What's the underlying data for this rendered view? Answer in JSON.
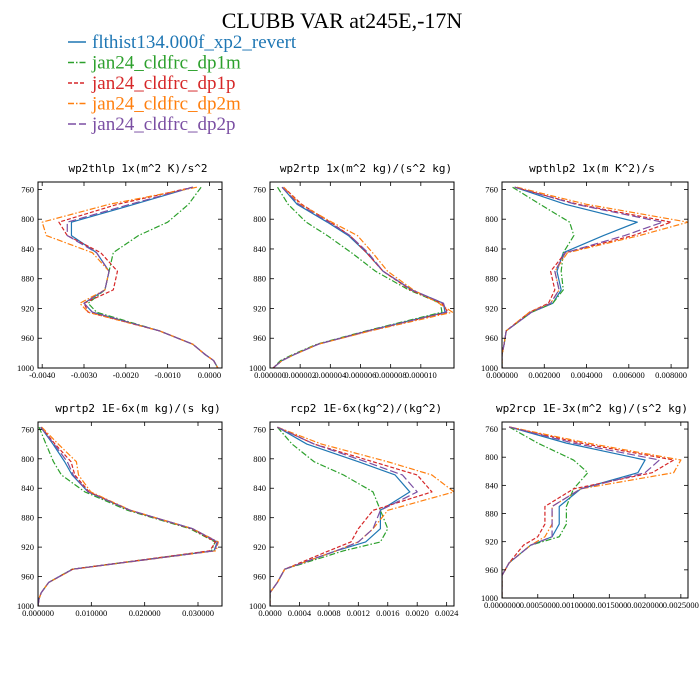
{
  "figure_title": "CLUBB VAR at245E,-17N",
  "colors": {
    "flthist134.000f_xp2_revert": "#1f77b4",
    "jan24_cldfrc_dp1m": "#2ca02c",
    "jan24_cldfrc_dp1p": "#d62728",
    "jan24_cldfrc_dp2m": "#ff7f0e",
    "jan24_cldfrc_dp2p": "#7b4fa3"
  },
  "legend": [
    {
      "label": "flthist134.000f_xp2_revert",
      "color": "#1f77b4",
      "dash": "solid"
    },
    {
      "label": "jan24_cldfrc_dp1m",
      "color": "#2ca02c",
      "dash": "dashdot"
    },
    {
      "label": "jan24_cldfrc_dp1p",
      "color": "#d62728",
      "dash": "dashed"
    },
    {
      "label": "jan24_cldfrc_dp2m",
      "color": "#ff7f0e",
      "dash": "dashdot"
    },
    {
      "label": "jan24_cldfrc_dp2p",
      "color": "#7b4fa3",
      "dash": "longdash"
    }
  ],
  "chart_data": [
    {
      "type": "line",
      "title": "wp2thlp  1x(m^2 K)/s^2",
      "xlim": [
        -0.0041,
        0.0003
      ],
      "ylim": [
        1000,
        750
      ],
      "xticks": [
        "-0.0040",
        "-0.0030",
        "-0.0020",
        "-0.0010",
        "0.0000"
      ],
      "xtick_values": [
        -0.004,
        -0.003,
        -0.002,
        -0.001,
        0.0
      ],
      "yticks": [
        760,
        800,
        840,
        880,
        920,
        960,
        1000
      ],
      "y": [
        757,
        780,
        804,
        822,
        845,
        870,
        895,
        913,
        925,
        950,
        968,
        982,
        990,
        1000
      ],
      "series": [
        {
          "name": "flthist134.000f_xp2_revert",
          "values": [
            -0.0004,
            -0.0018,
            -0.0033,
            -0.0033,
            -0.0027,
            -0.0024,
            -0.0025,
            -0.003,
            -0.0028,
            -0.0012,
            -0.0004,
            -0.0001,
            0.0001,
            0.0002
          ]
        },
        {
          "name": "jan24_cldfrc_dp1m",
          "values": [
            -0.0002,
            -0.0005,
            -0.001,
            -0.0017,
            -0.0023,
            -0.0024,
            -0.0025,
            -0.0029,
            -0.0027,
            -0.0012,
            -0.0004,
            -0.0001,
            0.0001,
            0.0002
          ]
        },
        {
          "name": "jan24_cldfrc_dp1p",
          "values": [
            -0.0004,
            -0.0022,
            -0.0036,
            -0.0034,
            -0.0026,
            -0.0022,
            -0.0023,
            -0.003,
            -0.0029,
            -0.0012,
            -0.0004,
            -0.0001,
            0.0001,
            0.0002
          ]
        },
        {
          "name": "jan24_cldfrc_dp2m",
          "values": [
            -0.0003,
            -0.0024,
            -0.004,
            -0.0039,
            -0.0028,
            -0.0024,
            -0.0025,
            -0.0031,
            -0.0029,
            -0.0012,
            -0.0004,
            -0.0001,
            0.0001,
            0.0002
          ]
        },
        {
          "name": "jan24_cldfrc_dp2p",
          "values": [
            -0.0004,
            -0.0019,
            -0.0034,
            -0.0034,
            -0.0027,
            -0.0024,
            -0.0025,
            -0.003,
            -0.0028,
            -0.0012,
            -0.0004,
            -0.0001,
            0.0001,
            0.0002
          ]
        }
      ]
    },
    {
      "type": "line",
      "title": "wp2rtp  1x(m^2 kg)/(s^2 kg)",
      "xlim": [
        0.0,
        1.22e-05
      ],
      "ylim": [
        1000,
        750
      ],
      "xticks": [
        "0.000000",
        "0.000002",
        "0.000004",
        "0.000006",
        "0.000008",
        "0.000010"
      ],
      "xtick_values": [
        0.0,
        2e-06,
        4e-06,
        6e-06,
        8e-06,
        1e-05
      ],
      "yticks": [
        760,
        800,
        840,
        880,
        920,
        960,
        1000
      ],
      "y": [
        757,
        780,
        804,
        822,
        845,
        870,
        895,
        913,
        925,
        950,
        968,
        982,
        990,
        1000
      ],
      "series": [
        {
          "name": "flthist134.000f_xp2_revert",
          "values": [
            8e-07,
            1.8e-06,
            3.8e-06,
            5.2e-06,
            6.4e-06,
            7.5e-06,
            9.4e-06,
            1.15e-05,
            1.16e-05,
            6.5e-06,
            3.2e-06,
            1.6e-06,
            8e-07,
            2e-07
          ]
        },
        {
          "name": "jan24_cldfrc_dp1m",
          "values": [
            5e-07,
            1.2e-06,
            2.4e-06,
            3.8e-06,
            5.4e-06,
            7e-06,
            9.2e-06,
            1.13e-05,
            1.14e-05,
            6.4e-06,
            3.1e-06,
            1.5e-06,
            7e-07,
            2e-07
          ]
        },
        {
          "name": "jan24_cldfrc_dp1p",
          "values": [
            9e-07,
            2.1e-06,
            4e-06,
            5.3e-06,
            6.4e-06,
            7.5e-06,
            9.3e-06,
            1.14e-05,
            1.18e-05,
            6.6e-06,
            3.2e-06,
            1.6e-06,
            8e-07,
            2e-07
          ]
        },
        {
          "name": "jan24_cldfrc_dp2m",
          "values": [
            9e-07,
            2e-06,
            4.1e-06,
            5.8e-06,
            6.8e-06,
            7.8e-06,
            9.5e-06,
            1.12e-05,
            1.21e-05,
            6.7e-06,
            3.2e-06,
            1.6e-06,
            8e-07,
            2e-07
          ]
        },
        {
          "name": "jan24_cldfrc_dp2p",
          "values": [
            8e-07,
            1.9e-06,
            3.9e-06,
            5.3e-06,
            6.5e-06,
            7.5e-06,
            9.4e-06,
            1.15e-05,
            1.17e-05,
            6.5e-06,
            3.2e-06,
            1.6e-06,
            8e-07,
            2e-07
          ]
        }
      ]
    },
    {
      "type": "line",
      "title": "wpthlp2  1x(m K^2)/s",
      "xlim": [
        0.0,
        0.0088
      ],
      "ylim": [
        1000,
        750
      ],
      "xticks": [
        "0.000000",
        "0.002000",
        "0.004000",
        "0.006000",
        "0.008000"
      ],
      "xtick_values": [
        0.0,
        0.002,
        0.004,
        0.006,
        0.008
      ],
      "yticks": [
        760,
        800,
        840,
        880,
        920,
        960,
        1000
      ],
      "y": [
        757,
        780,
        804,
        822,
        845,
        870,
        895,
        913,
        925,
        950,
        968,
        982,
        990,
        1000
      ],
      "series": [
        {
          "name": "flthist134.000f_xp2_revert",
          "values": [
            0.0006,
            0.003,
            0.0064,
            0.0048,
            0.0029,
            0.0026,
            0.0028,
            0.0024,
            0.0014,
            0.0002,
            0.0001,
            0.0,
            0.0,
            0.0
          ]
        },
        {
          "name": "jan24_cldfrc_dp1m",
          "values": [
            0.0005,
            0.0018,
            0.0032,
            0.0034,
            0.0029,
            0.0028,
            0.0029,
            0.0024,
            0.0014,
            0.0002,
            0.0001,
            0.0,
            0.0,
            0.0
          ]
        },
        {
          "name": "jan24_cldfrc_dp1p",
          "values": [
            0.0006,
            0.0036,
            0.008,
            0.0062,
            0.003,
            0.0023,
            0.0025,
            0.0022,
            0.0013,
            0.0002,
            0.0001,
            0.0,
            0.0,
            0.0
          ]
        },
        {
          "name": "jan24_cldfrc_dp2m",
          "values": [
            0.0007,
            0.004,
            0.0088,
            0.0065,
            0.0031,
            0.0025,
            0.0027,
            0.0023,
            0.0013,
            0.0002,
            0.0001,
            0.0,
            0.0,
            0.0
          ]
        },
        {
          "name": "jan24_cldfrc_dp2p",
          "values": [
            0.0006,
            0.0035,
            0.0076,
            0.0058,
            0.003,
            0.0025,
            0.0027,
            0.0023,
            0.0014,
            0.0002,
            0.0001,
            0.0,
            0.0,
            0.0
          ]
        }
      ]
    },
    {
      "type": "line",
      "title": "wprtp2  1E-6x(m kg)/(s kg)",
      "xlim": [
        0.0,
        0.0345
      ],
      "ylim": [
        1000,
        750
      ],
      "xticks": [
        "0.000000",
        "0.010000",
        "0.020000",
        "0.030000"
      ],
      "xtick_values": [
        0.0,
        0.01,
        0.02,
        0.03
      ],
      "yticks": [
        760,
        800,
        840,
        880,
        920,
        960,
        1000
      ],
      "y": [
        757,
        780,
        804,
        822,
        845,
        870,
        895,
        913,
        925,
        950,
        968,
        982,
        990,
        1000
      ],
      "series": [
        {
          "name": "flthist134.000f_xp2_revert",
          "values": [
            0.0005,
            0.0028,
            0.005,
            0.0064,
            0.0094,
            0.0173,
            0.029,
            0.0336,
            0.033,
            0.0065,
            0.002,
            0.0006,
            0.0002,
            0.0
          ]
        },
        {
          "name": "jan24_cldfrc_dp1m",
          "values": [
            0.0002,
            0.0015,
            0.0029,
            0.0044,
            0.0088,
            0.0168,
            0.0285,
            0.0332,
            0.0325,
            0.0064,
            0.002,
            0.0006,
            0.0002,
            0.0
          ]
        },
        {
          "name": "jan24_cldfrc_dp1p",
          "values": [
            0.0006,
            0.0032,
            0.0062,
            0.0069,
            0.0096,
            0.0172,
            0.0288,
            0.0333,
            0.0322,
            0.0065,
            0.002,
            0.0006,
            0.0002,
            0.0
          ]
        },
        {
          "name": "jan24_cldfrc_dp2m",
          "values": [
            0.0007,
            0.0038,
            0.0072,
            0.0076,
            0.0099,
            0.0174,
            0.029,
            0.0338,
            0.0334,
            0.0066,
            0.002,
            0.0006,
            0.0002,
            0.0
          ]
        },
        {
          "name": "jan24_cldfrc_dp2p",
          "values": [
            0.0005,
            0.003,
            0.0055,
            0.0066,
            0.0094,
            0.0173,
            0.029,
            0.0337,
            0.0331,
            0.0065,
            0.002,
            0.0006,
            0.0002,
            0.0
          ]
        }
      ]
    },
    {
      "type": "line",
      "title": "rcp2  1E-6x(kg^2)/(kg^2)",
      "xlim": [
        0.0,
        0.0025
      ],
      "ylim": [
        1000,
        750
      ],
      "xticks": [
        "0.0000",
        "0.0004",
        "0.0008",
        "0.0012",
        "0.0016",
        "0.0020",
        "0.0024"
      ],
      "xtick_values": [
        0.0,
        0.0004,
        0.0008,
        0.0012,
        0.0016,
        0.002,
        0.0024
      ],
      "yticks": [
        760,
        800,
        840,
        880,
        920,
        960,
        1000
      ],
      "y": [
        757,
        780,
        804,
        822,
        845,
        870,
        895,
        913,
        925,
        950,
        968,
        982,
        990,
        1000
      ],
      "series": [
        {
          "name": "flthist134.000f_xp2_revert",
          "values": [
            0.0001,
            0.0005,
            0.0012,
            0.0017,
            0.0019,
            0.0015,
            0.0015,
            0.0013,
            0.0009,
            0.0002,
            0.0001,
            0.0,
            0.0,
            0.0
          ]
        },
        {
          "name": "jan24_cldfrc_dp1m",
          "values": [
            0.0001,
            0.0003,
            0.0006,
            0.001,
            0.0014,
            0.0015,
            0.0016,
            0.0015,
            0.001,
            0.0002,
            0.0001,
            0.0,
            0.0,
            0.0
          ]
        },
        {
          "name": "jan24_cldfrc_dp1p",
          "values": [
            0.0001,
            0.0006,
            0.0014,
            0.002,
            0.0022,
            0.0014,
            0.0012,
            0.0011,
            0.0008,
            0.0002,
            0.0001,
            0.0,
            0.0,
            0.0
          ]
        },
        {
          "name": "jan24_cldfrc_dp2m",
          "values": [
            0.0001,
            0.0007,
            0.0016,
            0.0022,
            0.0025,
            0.0016,
            0.0014,
            0.0012,
            0.0009,
            0.0002,
            0.0001,
            0.0,
            0.0,
            0.0
          ]
        },
        {
          "name": "jan24_cldfrc_dp2p",
          "values": [
            0.0001,
            0.0006,
            0.0013,
            0.0018,
            0.002,
            0.0015,
            0.0014,
            0.0012,
            0.0009,
            0.0002,
            0.0001,
            0.0,
            0.0,
            0.0
          ]
        }
      ]
    },
    {
      "type": "line",
      "title": "wp2rcp  1E-3x(m^2 kg)/(s^2 kg)",
      "xlim": [
        0.0,
        0.0026
      ],
      "ylim": [
        1000,
        750
      ],
      "xticks": [
        "0.0000000",
        "0.0005000",
        "0.0010000",
        "0.0015000",
        "0.0020000",
        "0.0025000"
      ],
      "xtick_values": [
        0.0,
        0.0005,
        0.001,
        0.0015,
        0.002,
        0.0025
      ],
      "yticks": [
        760,
        800,
        840,
        880,
        920,
        960,
        1000
      ],
      "y": [
        757,
        780,
        804,
        822,
        845,
        870,
        895,
        913,
        925,
        950,
        968,
        982,
        990,
        1000
      ],
      "series": [
        {
          "name": "flthist134.000f_xp2_revert",
          "values": [
            0.0001,
            0.0009,
            0.002,
            0.0019,
            0.0011,
            0.0008,
            0.0008,
            0.0007,
            0.0004,
            0.0001,
            0.0,
            0.0,
            0.0,
            0.0
          ]
        },
        {
          "name": "jan24_cldfrc_dp1m",
          "values": [
            0.0001,
            0.0005,
            0.001,
            0.0012,
            0.001,
            0.0009,
            0.0009,
            0.0008,
            0.0004,
            0.0001,
            0.0,
            0.0,
            0.0,
            0.0
          ]
        },
        {
          "name": "jan24_cldfrc_dp1p",
          "values": [
            0.0001,
            0.0011,
            0.0024,
            0.0021,
            0.001,
            0.0006,
            0.0006,
            0.0005,
            0.0003,
            0.0001,
            0.0,
            0.0,
            0.0,
            0.0
          ]
        },
        {
          "name": "jan24_cldfrc_dp2m",
          "values": [
            0.0001,
            0.0012,
            0.0025,
            0.0024,
            0.0011,
            0.0007,
            0.0007,
            0.0006,
            0.0004,
            0.0001,
            0.0,
            0.0,
            0.0,
            0.0
          ]
        },
        {
          "name": "jan24_cldfrc_dp2p",
          "values": [
            0.0001,
            0.001,
            0.0022,
            0.002,
            0.0011,
            0.0007,
            0.0007,
            0.0007,
            0.0004,
            0.0001,
            0.0,
            0.0,
            0.0,
            0.0
          ]
        }
      ]
    }
  ]
}
